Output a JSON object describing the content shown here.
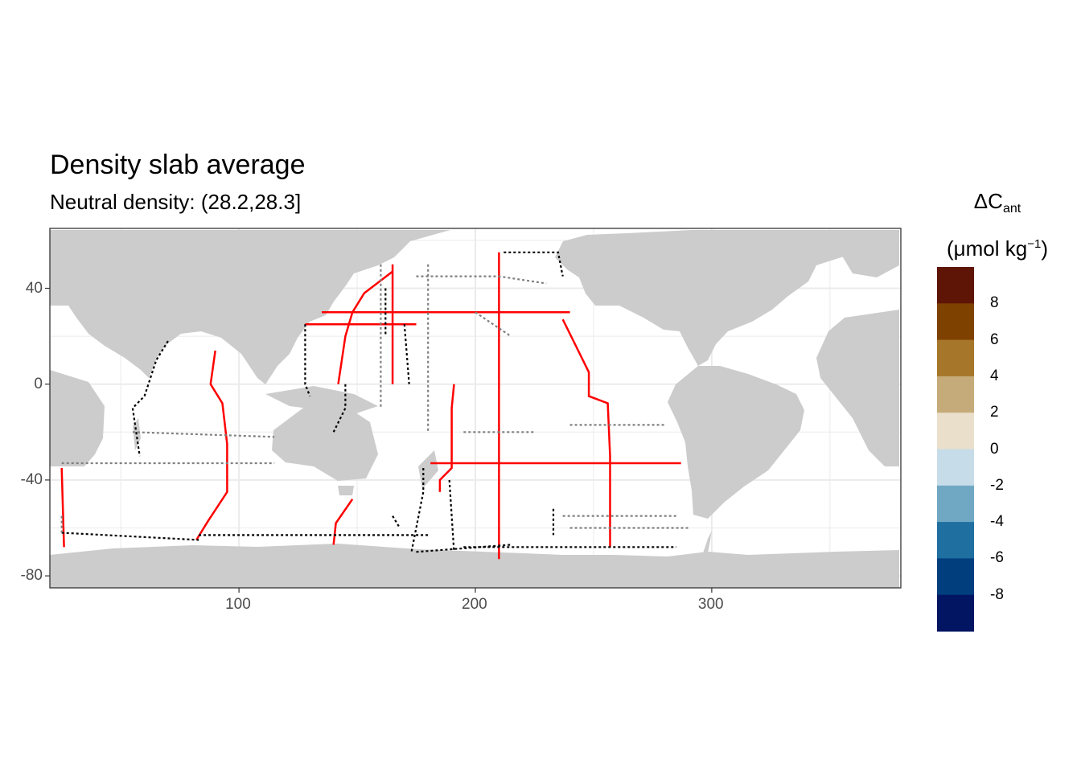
{
  "title": "Density slab average",
  "subtitle": "Neutral density: (28.2,28.3]",
  "legend": {
    "title_main": "ΔC",
    "title_sub": "ant",
    "title_unit_pre": "(μmol kg",
    "title_unit_sup": "−1",
    "title_unit_post": ")",
    "bins": [
      {
        "color": "#5e1506"
      },
      {
        "color": "#7e4100"
      },
      {
        "color": "#a6762a"
      },
      {
        "color": "#c6ab7a"
      },
      {
        "color": "#e9dfcb"
      },
      {
        "color": "#c7dce9"
      },
      {
        "color": "#70a8c4"
      },
      {
        "color": "#1f6fa0"
      },
      {
        "color": "#013e7e"
      },
      {
        "color": "#021563"
      }
    ],
    "labels": [
      "8",
      "6",
      "4",
      "2",
      "0",
      "-2",
      "-4",
      "-6",
      "-8"
    ]
  },
  "axes": {
    "x_ticks": [
      "100",
      "200",
      "300"
    ],
    "y_ticks": [
      "40",
      "0",
      "-40",
      "-80"
    ],
    "x_range": [
      20,
      380
    ],
    "y_range": [
      -85,
      65
    ]
  },
  "chart_data": {
    "type": "map",
    "title": "Density slab average",
    "subtitle": "Neutral density: (28.2,28.3]",
    "grid": true,
    "legend_position": "right",
    "land_color": "#cccccc",
    "series": [
      {
        "color": "#ff0000",
        "tracks": [
          [
            [
              210,
              55
            ],
            [
              210,
              20
            ],
            [
              210,
              -70
            ],
            [
              210,
              -73
            ]
          ],
          [
            [
              165,
              50
            ],
            [
              165,
              30
            ],
            [
              165,
              10
            ],
            [
              165,
              0
            ]
          ],
          [
            [
              237,
              27
            ],
            [
              243,
              15
            ],
            [
              248,
              5
            ],
            [
              248,
              -5
            ],
            [
              256,
              -8
            ],
            [
              257,
              -30
            ],
            [
              257,
              -68
            ]
          ],
          [
            [
              181,
              -33
            ],
            [
              287,
              -33
            ]
          ],
          [
            [
              90,
              14
            ],
            [
              88,
              0
            ],
            [
              93,
              -8
            ],
            [
              95,
              -25
            ],
            [
              95,
              -45
            ],
            [
              87,
              -57
            ],
            [
              82,
              -65
            ]
          ],
          [
            [
              140,
              -67
            ],
            [
              141,
              -58
            ],
            [
              148,
              -48
            ]
          ],
          [
            [
              25,
              -35
            ],
            [
              26,
              -68
            ]
          ],
          [
            [
              135,
              30
            ],
            [
              240,
              30
            ]
          ],
          [
            [
              128,
              25
            ],
            [
              175,
              25
            ]
          ],
          [
            [
              165,
              47
            ],
            [
              153,
              38
            ],
            [
              148,
              30
            ],
            [
              145,
              20
            ],
            [
              142,
              0
            ]
          ],
          [
            [
              191,
              0
            ],
            [
              190,
              -10
            ],
            [
              190,
              -35
            ],
            [
              185,
              -40
            ],
            [
              185,
              -45
            ]
          ]
        ]
      },
      {
        "color": "#000000",
        "tracks": [
          [
            [
              70,
              18
            ],
            [
              65,
              10
            ],
            [
              60,
              -5
            ],
            [
              55,
              -10
            ],
            [
              58,
              -30
            ]
          ],
          [
            [
              83,
              -63
            ],
            [
              180,
              -63
            ]
          ],
          [
            [
              195,
              -68
            ],
            [
              285,
              -68
            ]
          ],
          [
            [
              189,
              -40
            ],
            [
              191,
              -70
            ]
          ],
          [
            [
              165,
              -55
            ],
            [
              168,
              -60
            ]
          ],
          [
            [
              233,
              -52
            ],
            [
              233,
              -63
            ]
          ],
          [
            [
              128,
              25
            ],
            [
              128,
              0
            ],
            [
              130,
              -5
            ]
          ],
          [
            [
              162,
              40
            ],
            [
              162,
              20
            ]
          ],
          [
            [
              170,
              25
            ],
            [
              172,
              0
            ]
          ],
          [
            [
              212,
              55
            ],
            [
              235,
              55
            ],
            [
              237,
              45
            ]
          ],
          [
            [
              145,
              0
            ],
            [
              145,
              -10
            ],
            [
              140,
              -20
            ]
          ],
          [
            [
              178,
              -35
            ],
            [
              178,
              -45
            ],
            [
              173,
              -70
            ]
          ],
          [
            [
              25,
              -62
            ],
            [
              83,
              -65
            ]
          ],
          [
            [
              175,
              -70
            ],
            [
              215,
              -67
            ]
          ]
        ]
      },
      {
        "color": "#808080",
        "tracks": [
          [
            [
              55,
              -20
            ],
            [
              115,
              -22
            ]
          ],
          [
            [
              25,
              -33
            ],
            [
              115,
              -33
            ]
          ],
          [
            [
              160,
              50
            ],
            [
              160,
              25
            ],
            [
              160,
              -10
            ]
          ],
          [
            [
              180,
              50
            ],
            [
              180,
              25
            ],
            [
              180,
              -20
            ]
          ],
          [
            [
              195,
              -20
            ],
            [
              225,
              -20
            ]
          ],
          [
            [
              240,
              -17
            ],
            [
              280,
              -17
            ]
          ],
          [
            [
              200,
              30
            ],
            [
              215,
              20
            ]
          ],
          [
            [
              175,
              45
            ],
            [
              210,
              45
            ],
            [
              230,
              42
            ]
          ],
          [
            [
              237,
              -55
            ],
            [
              285,
              -55
            ]
          ],
          [
            [
              240,
              -60
            ],
            [
              290,
              -60
            ]
          ],
          [
            [
              25,
              -55
            ],
            [
              25,
              -62
            ]
          ]
        ]
      }
    ]
  }
}
